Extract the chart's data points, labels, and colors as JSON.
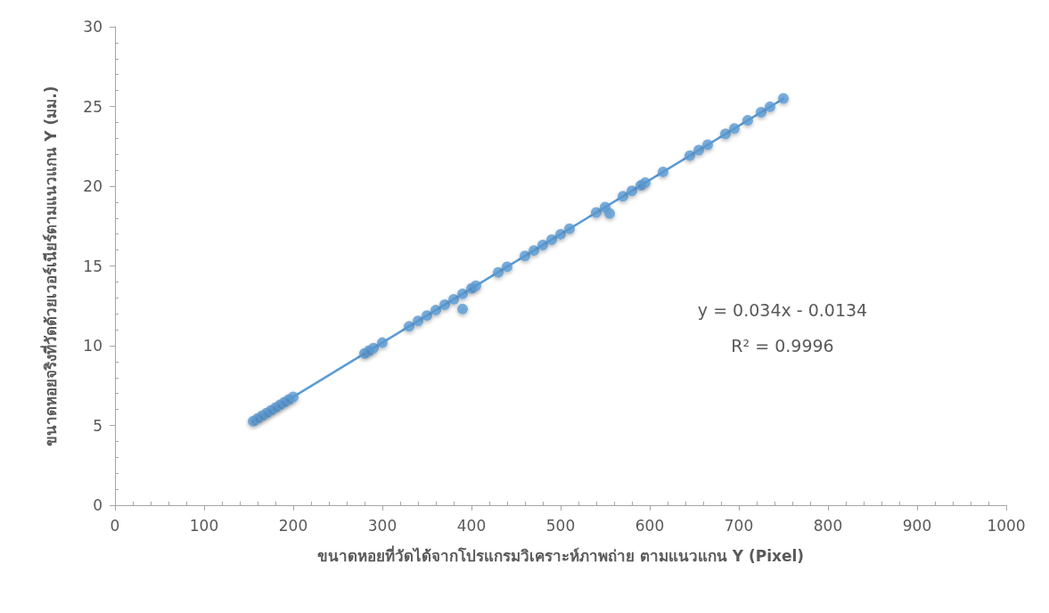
{
  "chart_data": {
    "type": "scatter",
    "xlabel": "ขนาดหอยที่วัดได้จากโปรแกรมวิเคราะห์ภาพถ่าย ตามแนวแกน Y (Pixel)",
    "ylabel": "ขนาดหอยจริงที่วัดด้วยเวอร์เนียร์ตามแนวแกน Y (มม.)",
    "annotations": [
      "y = 0.034x - 0.0134",
      "R² = 0.9996"
    ],
    "xlim": [
      0,
      1000
    ],
    "xticks": [
      0,
      100,
      200,
      300,
      400,
      500,
      600,
      700,
      800,
      900,
      1000
    ],
    "ylim": [
      0,
      30
    ],
    "yticks": [
      0,
      5,
      10,
      15,
      20,
      25,
      30
    ],
    "grid": false,
    "marker": "circle",
    "series": [
      {
        "type": "scatter",
        "color": "#5b9bd5",
        "x": [
          155,
          160,
          165,
          170,
          175,
          180,
          185,
          190,
          195,
          200,
          280,
          285,
          290,
          300,
          330,
          340,
          350,
          360,
          370,
          380,
          390,
          400,
          405,
          390,
          430,
          440,
          460,
          470,
          480,
          490,
          500,
          510,
          540,
          550,
          555,
          570,
          580,
          590,
          595,
          615,
          645,
          655,
          665,
          685,
          695,
          710,
          725,
          735,
          750
        ],
        "values": [
          5.26,
          5.43,
          5.6,
          5.77,
          5.94,
          6.11,
          6.28,
          6.45,
          6.62,
          6.79,
          9.51,
          9.68,
          9.85,
          10.19,
          11.21,
          11.55,
          11.89,
          12.23,
          12.57,
          12.91,
          13.25,
          13.59,
          13.76,
          12.3,
          14.6,
          14.95,
          15.63,
          15.97,
          16.31,
          16.65,
          16.99,
          17.33,
          18.35,
          18.69,
          18.3,
          19.37,
          19.71,
          20.05,
          20.22,
          20.9,
          21.92,
          22.26,
          22.6,
          23.28,
          23.62,
          24.13,
          24.64,
          24.98,
          25.5
        ]
      },
      {
        "type": "line",
        "color": "#5b9bd5",
        "x": [
          155,
          750
        ],
        "values": [
          5.26,
          25.49
        ],
        "marker": "none",
        "line_style": "solid"
      }
    ]
  }
}
